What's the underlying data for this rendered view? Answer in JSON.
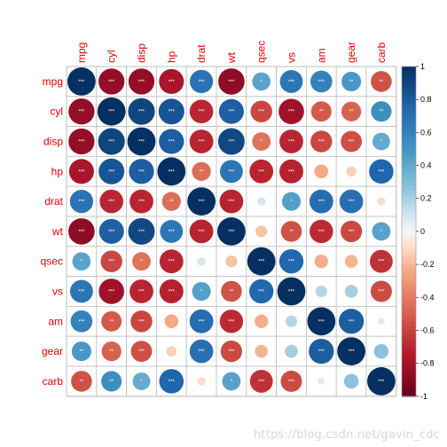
{
  "chart_data": {
    "type": "heatmap",
    "variables": [
      "mpg",
      "cyl",
      "disp",
      "hp",
      "drat",
      "wt",
      "qsec",
      "vs",
      "am",
      "gear",
      "carb"
    ],
    "matrix": [
      [
        1.0,
        -0.85,
        -0.85,
        -0.78,
        0.68,
        -0.87,
        0.42,
        0.66,
        0.6,
        0.48,
        -0.55
      ],
      [
        -0.85,
        1.0,
        0.9,
        0.83,
        -0.7,
        0.78,
        -0.59,
        -0.81,
        -0.52,
        -0.49,
        0.53
      ],
      [
        -0.85,
        0.9,
        1.0,
        0.79,
        -0.71,
        0.89,
        -0.43,
        -0.71,
        -0.59,
        -0.56,
        0.39
      ],
      [
        -0.78,
        0.83,
        0.79,
        1.0,
        -0.45,
        0.66,
        -0.71,
        -0.72,
        -0.24,
        -0.13,
        0.75
      ],
      [
        0.68,
        -0.7,
        -0.71,
        -0.45,
        1.0,
        -0.71,
        0.09,
        0.44,
        0.71,
        0.7,
        -0.09
      ],
      [
        -0.87,
        0.78,
        0.89,
        0.66,
        -0.71,
        1.0,
        -0.17,
        -0.55,
        -0.69,
        -0.58,
        0.43
      ],
      [
        0.42,
        -0.59,
        -0.43,
        -0.71,
        0.09,
        -0.17,
        1.0,
        0.74,
        -0.23,
        -0.21,
        -0.66
      ],
      [
        0.66,
        -0.81,
        -0.71,
        -0.72,
        0.44,
        -0.55,
        0.74,
        1.0,
        0.17,
        0.21,
        -0.57
      ],
      [
        0.6,
        -0.52,
        -0.59,
        -0.24,
        0.71,
        -0.69,
        -0.23,
        0.17,
        1.0,
        0.79,
        0.06
      ],
      [
        0.48,
        -0.49,
        -0.56,
        -0.13,
        0.7,
        -0.58,
        -0.21,
        0.21,
        0.79,
        1.0,
        0.27
      ],
      [
        -0.55,
        0.53,
        0.39,
        0.75,
        -0.09,
        0.43,
        -0.66,
        -0.57,
        0.06,
        0.27,
        1.0
      ]
    ],
    "significance": [
      [
        "***",
        "***",
        "***",
        "***",
        "***",
        "***",
        "*",
        "***",
        "***",
        "**",
        "**"
      ],
      [
        "***",
        "***",
        "***",
        "***",
        "***",
        "***",
        "***",
        "***",
        "**",
        "**",
        "**"
      ],
      [
        "***",
        "***",
        "***",
        "***",
        "***",
        "***",
        "*",
        "***",
        "***",
        "***",
        "*"
      ],
      [
        "***",
        "***",
        "***",
        "***",
        "**",
        "***",
        "***",
        "***",
        "",
        "",
        "***"
      ],
      [
        "***",
        "***",
        "***",
        "**",
        "***",
        "***",
        "",
        "*",
        "***",
        "***",
        ""
      ],
      [
        "***",
        "***",
        "***",
        "***",
        "***",
        "***",
        "",
        "**",
        "***",
        "***",
        "*"
      ],
      [
        "*",
        "***",
        "*",
        "***",
        "",
        "",
        "***",
        "***",
        "",
        "",
        "***"
      ],
      [
        "***",
        "***",
        "***",
        "***",
        "*",
        "**",
        "***",
        "***",
        "",
        "",
        "***"
      ],
      [
        "***",
        "**",
        "***",
        "",
        "***",
        "***",
        "",
        "",
        "***",
        "***",
        ""
      ],
      [
        "**",
        "**",
        "***",
        "",
        "***",
        "***",
        "",
        "",
        "***",
        "***",
        ""
      ],
      [
        "**",
        "**",
        "*",
        "***",
        "",
        "*",
        "***",
        "***",
        "",
        "",
        "***"
      ]
    ],
    "colorbar": {
      "min": -1,
      "max": 1,
      "ticks": [
        "1",
        "0.8",
        "0.6",
        "0.4",
        "0.2",
        "0",
        "-0.2",
        "-0.4",
        "-0.6",
        "-0.8",
        "-1"
      ]
    },
    "colors": {
      "negative_end": "#67001f",
      "mid": "#f7f7f7",
      "positive_end": "#053061",
      "label": "#e00000",
      "grid": "#bdbdbd"
    }
  },
  "watermark": "https://blog.csdn.net/gavin_cdc"
}
